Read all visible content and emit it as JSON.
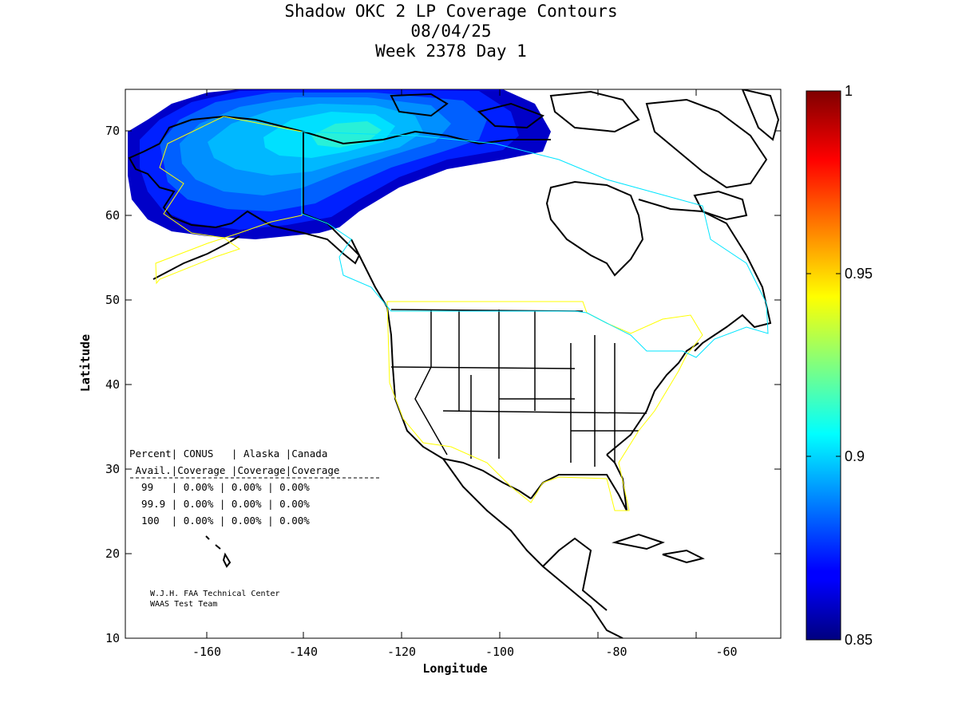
{
  "title": {
    "line1": "Shadow OKC 2 LP Coverage Contours",
    "line2": "08/04/25",
    "line3": "Week 2378 Day 1"
  },
  "axes": {
    "xlabel": "Longitude",
    "ylabel": "Latitude",
    "xlim": [
      -175,
      -50
    ],
    "ylim": [
      10,
      75
    ],
    "xticks": [
      -160,
      -140,
      -120,
      -100,
      -80,
      -60
    ],
    "yticks": [
      10,
      20,
      30,
      40,
      50,
      60,
      70
    ]
  },
  "colorbar": {
    "range": [
      0.85,
      1
    ],
    "ticks": [
      "0.85",
      "0.9",
      "0.95",
      "1"
    ],
    "colormap": "jet"
  },
  "table": {
    "header1": "Percent| CONUS   | Alaska |Canada",
    "header2": " Avail.|Coverage |Coverage|Coverage",
    "rows": [
      "  99   | 0.00% | 0.00% | 0.00%",
      "  99.9 | 0.00% | 0.00% | 0.00%",
      "  100  | 0.00% | 0.00% | 0.00%"
    ]
  },
  "credits": {
    "line1": "W.J.H. FAA Technical Center",
    "line2": "WAAS Test Team"
  },
  "colors": {
    "region_boundary_conus_alaska": "#ffff00",
    "region_boundary_canada": "#00e5ff",
    "coastline": "#000000"
  }
}
